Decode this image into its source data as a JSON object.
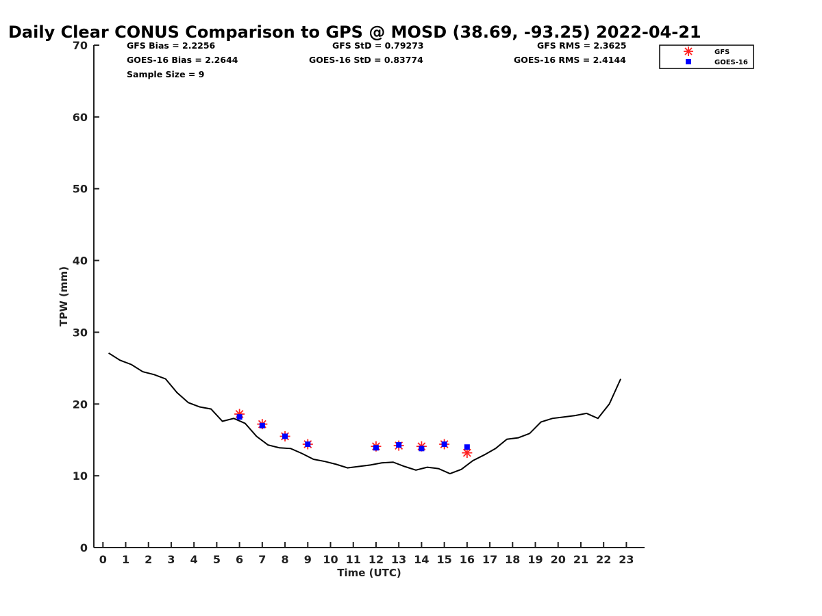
{
  "chart_data": {
    "type": "line",
    "title": "Daily Clear CONUS Comparison to GPS @ MOSD (38.69, -93.25) 2022-04-21",
    "xlabel": "Time (UTC)",
    "ylabel": "TPW (mm)",
    "xlim": [
      -0.4,
      23.8
    ],
    "ylim": [
      0,
      70
    ],
    "xticks": [
      0,
      1,
      2,
      3,
      4,
      5,
      6,
      7,
      8,
      9,
      10,
      11,
      12,
      13,
      14,
      15,
      16,
      17,
      18,
      19,
      20,
      21,
      22,
      23
    ],
    "yticks": [
      0,
      10,
      20,
      30,
      40,
      50,
      60,
      70
    ],
    "stats": {
      "gfs_bias": "GFS Bias = 2.2256",
      "goes_bias": "GOES-16 Bias = 2.2644",
      "sample_size": "Sample Size = 9",
      "gfs_std": "GFS StD = 0.79273",
      "goes_std": "GOES-16 StD = 0.83774",
      "gfs_rms": "GFS RMS = 2.3625",
      "goes_rms": "GOES-16 RMS = 2.4144"
    },
    "legend": {
      "position": "top-right",
      "entries": [
        "GFS",
        "GOES-16"
      ]
    },
    "series": [
      {
        "name": "GPS",
        "color": "#000000",
        "marker": "line",
        "x": [
          0.25,
          0.75,
          1.25,
          1.75,
          2.25,
          2.75,
          3.25,
          3.75,
          4.25,
          4.75,
          5.25,
          5.75,
          6.25,
          6.75,
          7.25,
          7.75,
          8.25,
          8.75,
          9.25,
          9.75,
          10.25,
          10.75,
          11.25,
          11.75,
          12.25,
          12.75,
          13.25,
          13.75,
          14.25,
          14.75,
          15.25,
          15.75,
          16.25,
          16.75,
          17.25,
          17.75,
          18.25,
          18.75,
          19.25,
          19.75,
          20.25,
          20.75,
          21.25,
          21.75,
          22.25,
          22.75
        ],
        "y": [
          27.1,
          26.1,
          25.5,
          24.5,
          24.1,
          23.5,
          21.6,
          20.2,
          19.6,
          19.3,
          17.6,
          18.0,
          17.3,
          15.5,
          14.3,
          13.9,
          13.8,
          13.1,
          12.3,
          12.0,
          11.6,
          11.1,
          11.3,
          11.5,
          11.8,
          11.9,
          11.3,
          10.8,
          11.2,
          11.0,
          10.3,
          10.9,
          12.1,
          12.9,
          13.8,
          15.1,
          15.3,
          15.9,
          17.5,
          18.0,
          18.2,
          18.4,
          18.7,
          18.0,
          20.0,
          23.5
        ]
      },
      {
        "name": "GFS",
        "color": "#ff2020",
        "marker": "asterisk",
        "x": [
          6,
          7,
          8,
          9,
          12,
          13,
          14,
          15,
          16
        ],
        "y": [
          18.6,
          17.2,
          15.5,
          14.4,
          14.1,
          14.2,
          14.1,
          14.4,
          13.2
        ]
      },
      {
        "name": "GOES-16",
        "color": "#0000ff",
        "marker": "square",
        "x": [
          6,
          7,
          8,
          9,
          12,
          13,
          14,
          15,
          16
        ],
        "y": [
          18.2,
          17.0,
          15.5,
          14.4,
          13.9,
          14.3,
          13.8,
          14.4,
          14.0
        ]
      }
    ]
  }
}
